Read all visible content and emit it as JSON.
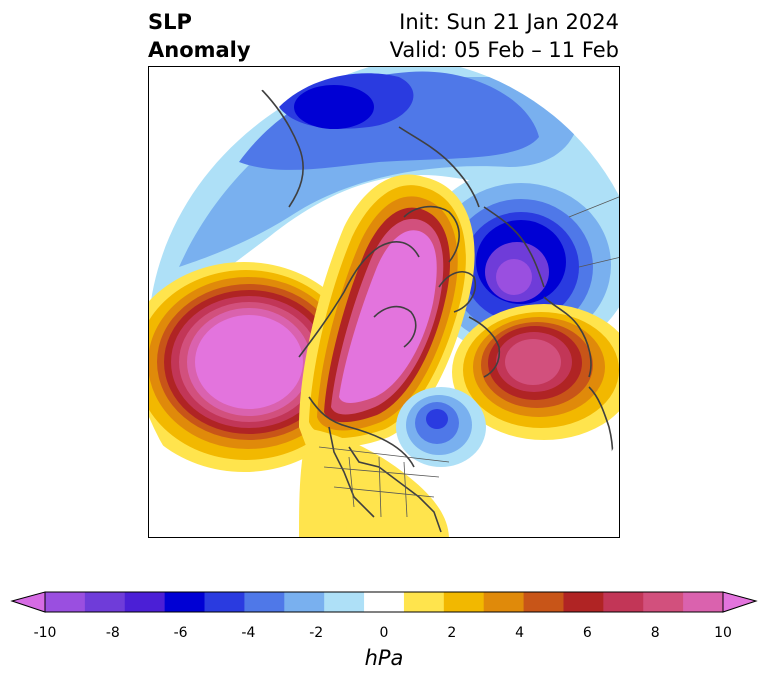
{
  "title": {
    "left_line1": "SLP",
    "left_line2": "Anomaly",
    "right_line1": "Init: Sun 21 Jan 2024",
    "right_line2": "Valid: 05 Feb – 11 Feb"
  },
  "colorbar": {
    "unit": "hPa",
    "ticks": [
      "-10",
      "-8",
      "-6",
      "-4",
      "-2",
      "0",
      "2",
      "4",
      "6",
      "8",
      "10"
    ],
    "colors": [
      "#d66be4",
      "#9a4fe0",
      "#6f3cd9",
      "#4b1fd6",
      "#0000d4",
      "#2a3be0",
      "#4f78e8",
      "#79b0ef",
      "#aee0f7",
      "#ffffff",
      "#ffe44d",
      "#f2b800",
      "#e08a0a",
      "#c85518",
      "#b02424",
      "#c23657",
      "#d2507d",
      "#da62ae",
      "#e374dd"
    ]
  },
  "map": {
    "projection": "north-polar-stereographic",
    "anomalies": [
      {
        "label": "high-north-pacific",
        "sign": "positive",
        "peak_hpa": 10
      },
      {
        "label": "high-arctic-greenland",
        "sign": "positive",
        "peak_hpa": 10
      },
      {
        "label": "high-north-atlantic",
        "sign": "positive",
        "peak_hpa": 8
      },
      {
        "label": "high-united-states",
        "sign": "positive",
        "peak_hpa": 2
      },
      {
        "label": "low-siberia",
        "sign": "negative",
        "peak_hpa": -6
      },
      {
        "label": "low-scandinavia",
        "sign": "negative",
        "peak_hpa": -8
      },
      {
        "label": "low-labrador-sea",
        "sign": "negative",
        "peak_hpa": -4
      }
    ]
  }
}
